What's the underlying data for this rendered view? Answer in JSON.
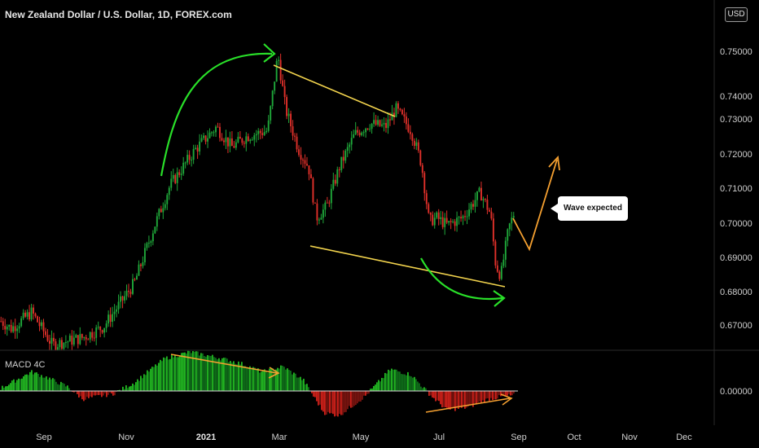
{
  "chart_data": {
    "type": "candlestick",
    "title": "New Zealand Dollar / U.S. Dollar, 1D, FOREX.com",
    "currency_badge": "USD",
    "x_tick_labels": [
      "Sep",
      "Nov",
      "2021",
      "Mar",
      "May",
      "Jul",
      "Sep",
      "Oct",
      "Nov",
      "Dec"
    ],
    "price_axis": {
      "ylim": [
        0.6625,
        0.759
      ],
      "tick_labels": [
        "0.75000",
        "0.74000",
        "0.73000",
        "0.72000",
        "0.71000",
        "0.70000",
        "0.69000",
        "0.68000",
        "0.67000"
      ]
    },
    "price_path": [
      {
        "t": 0,
        "p": 0.6705
      },
      {
        "t": 0.02,
        "p": 0.6685
      },
      {
        "t": 0.06,
        "p": 0.673
      },
      {
        "t": 0.075,
        "p": 0.6695
      },
      {
        "t": 0.1,
        "p": 0.664
      },
      {
        "t": 0.16,
        "p": 0.666
      },
      {
        "t": 0.2,
        "p": 0.669
      },
      {
        "t": 0.26,
        "p": 0.681
      },
      {
        "t": 0.3,
        "p": 0.697
      },
      {
        "t": 0.33,
        "p": 0.708
      },
      {
        "t": 0.38,
        "p": 0.718
      },
      {
        "t": 0.42,
        "p": 0.724
      },
      {
        "t": 0.45,
        "p": 0.7185
      },
      {
        "t": 0.48,
        "p": 0.7215
      },
      {
        "t": 0.52,
        "p": 0.723
      },
      {
        "t": 0.54,
        "p": 0.744
      },
      {
        "t": 0.555,
        "p": 0.729
      },
      {
        "t": 0.58,
        "p": 0.718
      },
      {
        "t": 0.6,
        "p": 0.713
      },
      {
        "t": 0.615,
        "p": 0.699
      },
      {
        "t": 0.635,
        "p": 0.702
      },
      {
        "t": 0.66,
        "p": 0.713
      },
      {
        "t": 0.69,
        "p": 0.722
      },
      {
        "t": 0.72,
        "p": 0.725
      },
      {
        "t": 0.75,
        "p": 0.724
      },
      {
        "t": 0.77,
        "p": 0.729
      },
      {
        "t": 0.8,
        "p": 0.723
      },
      {
        "t": 0.82,
        "p": 0.714
      },
      {
        "t": 0.835,
        "p": 0.698
      },
      {
        "t": 0.85,
        "p": 0.699
      },
      {
        "t": 0.87,
        "p": 0.697
      },
      {
        "t": 0.9,
        "p": 0.699
      },
      {
        "t": 0.935,
        "p": 0.706
      },
      {
        "t": 0.955,
        "p": 0.7
      },
      {
        "t": 0.965,
        "p": 0.686
      },
      {
        "t": 0.975,
        "p": 0.683
      },
      {
        "t": 0.99,
        "p": 0.696
      },
      {
        "t": 1,
        "p": 0.7
      }
    ],
    "macd_panel": {
      "title": "MACD 4C",
      "zero_label": "0.00000",
      "ylim": [
        -0.006,
        0.0075
      ],
      "path": [
        {
          "t": 0,
          "v": 0.0005
        },
        {
          "t": 0.06,
          "v": 0.0035
        },
        {
          "t": 0.09,
          "v": 0.0025
        },
        {
          "t": 0.13,
          "v": 0.0008
        },
        {
          "t": 0.16,
          "v": -0.0015
        },
        {
          "t": 0.22,
          "v": -0.0005
        },
        {
          "t": 0.26,
          "v": 0.0015
        },
        {
          "t": 0.32,
          "v": 0.006
        },
        {
          "t": 0.37,
          "v": 0.0072
        },
        {
          "t": 0.43,
          "v": 0.006
        },
        {
          "t": 0.47,
          "v": 0.005
        },
        {
          "t": 0.51,
          "v": 0.0035
        },
        {
          "t": 0.55,
          "v": 0.0045
        },
        {
          "t": 0.59,
          "v": 0.002
        },
        {
          "t": 0.63,
          "v": -0.004
        },
        {
          "t": 0.66,
          "v": -0.0045
        },
        {
          "t": 0.71,
          "v": -0.001
        },
        {
          "t": 0.76,
          "v": 0.004
        },
        {
          "t": 0.8,
          "v": 0.003
        },
        {
          "t": 0.84,
          "v": -0.001
        },
        {
          "t": 0.87,
          "v": -0.0035
        },
        {
          "t": 0.91,
          "v": -0.003
        },
        {
          "t": 0.95,
          "v": -0.0015
        },
        {
          "t": 0.98,
          "v": -0.001
        },
        {
          "t": 1,
          "v": -0.0008
        }
      ]
    },
    "annotations": [
      {
        "type": "callout",
        "text": "Wave expected"
      }
    ],
    "colors": {
      "background": "#000000",
      "up": "#1fa83a",
      "down": "#e0302a",
      "macd_up_strong": "#22b822",
      "macd_up_weak": "#0f6e1a",
      "macd_down_strong": "#d0201a",
      "macd_down_weak": "#7a1410",
      "trendline": "#f2d34d",
      "arrow_green": "#29e029",
      "arrow_orange": "#f5a030",
      "axis_text": "#cfcfcf"
    },
    "grid": false
  }
}
